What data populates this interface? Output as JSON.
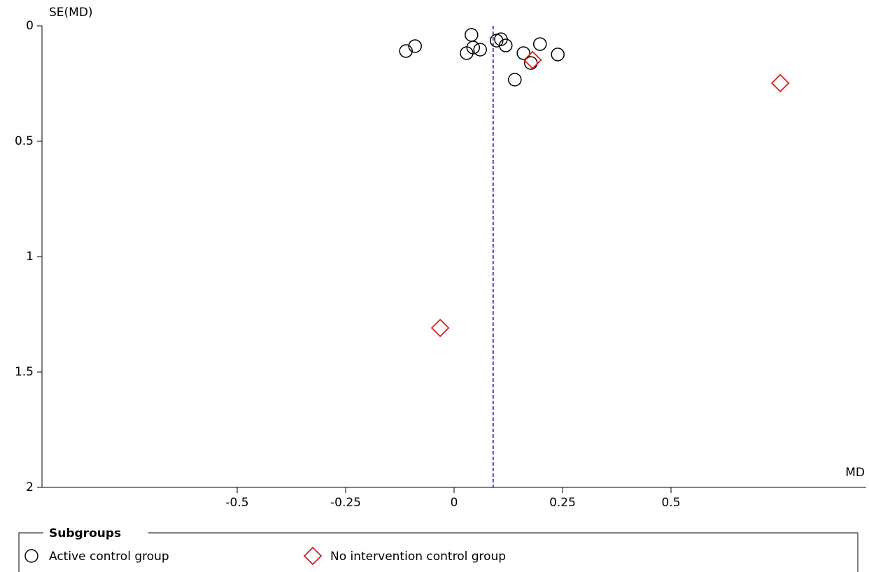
{
  "chart_data": {
    "type": "scatter",
    "xlabel": "MD",
    "ylabel": "SE(MD)",
    "xlim": [
      -0.95,
      0.95
    ],
    "ylim": [
      0,
      2
    ],
    "y_inverted": true,
    "xticks": [
      -0.5,
      -0.25,
      0,
      0.25,
      0.5
    ],
    "yticks": [
      0,
      0.5,
      1,
      1.5,
      2
    ],
    "reference_line": 0.09,
    "reference_color": "#0000cc",
    "legend_title": "Subgroups",
    "series": [
      {
        "name": "Active control group",
        "color": "#000000",
        "marker": "circle",
        "x": [
          -0.111,
          -0.09,
          0.04,
          0.029,
          0.044,
          0.06,
          0.098,
          0.108,
          0.119,
          0.16,
          0.198,
          0.239,
          0.14,
          0.177
        ],
        "values": [
          0.109,
          0.088,
          0.039,
          0.118,
          0.094,
          0.103,
          0.064,
          0.058,
          0.085,
          0.118,
          0.079,
          0.124,
          0.233,
          0.161
        ]
      },
      {
        "name": "No intervention control group",
        "color": "#d42020",
        "marker": "diamond",
        "x": [
          0.181,
          0.752,
          -0.032
        ],
        "values": [
          0.148,
          0.248,
          1.309
        ]
      }
    ]
  }
}
